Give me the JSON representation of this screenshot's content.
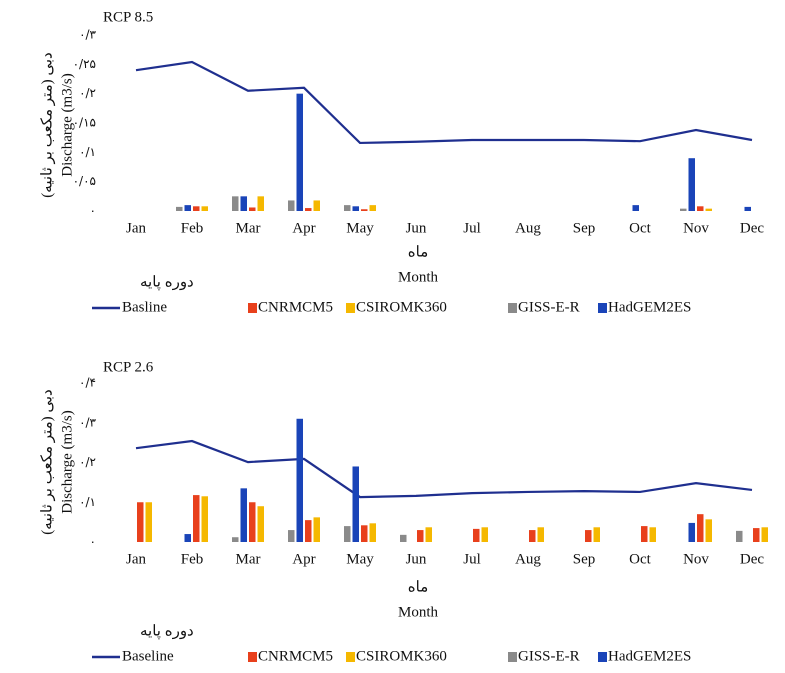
{
  "chart_data": [
    {
      "type": "bar",
      "title": "RCP 8.5",
      "y_label": [
        "دبی (متر مکعب بر ثانیه)",
        "Discharge (m3/s)"
      ],
      "x_label": [
        "ماه",
        "Month"
      ],
      "legend_title": "دوره پایه",
      "categories": [
        "Jan",
        "Feb",
        "Mar",
        "Apr",
        "May",
        "Jun",
        "Jul",
        "Aug",
        "Sep",
        "Oct",
        "Nov",
        "Dec"
      ],
      "ylim": [
        0,
        0.3
      ],
      "yticks": [
        {
          "value": 0,
          "label": "٠"
        },
        {
          "value": 0.05,
          "label": "٠/٠۵"
        },
        {
          "value": 0.1,
          "label": "٠/١"
        },
        {
          "value": 0.15,
          "label": "٠/١۵"
        },
        {
          "value": 0.2,
          "label": "٠/٢"
        },
        {
          "value": 0.25,
          "label": "٠/٢۵"
        },
        {
          "value": 0.3,
          "label": "٠/٣"
        }
      ],
      "series": [
        {
          "name": "Basline",
          "type": "line",
          "color": "#1f2f8f",
          "values": [
            0.24,
            0.254,
            0.205,
            0.21,
            0.116,
            0.118,
            0.121,
            0.121,
            0.121,
            0.119,
            0.138,
            0.121
          ]
        },
        {
          "name": "CNRMCM5",
          "color": "#e8401c",
          "values": [
            0,
            0.008,
            0.006,
            0.005,
            0.003,
            0,
            0,
            0,
            0,
            0,
            0.008,
            0
          ]
        },
        {
          "name": "CSIROMK360",
          "color": "#f5b800",
          "values": [
            0,
            0.008,
            0.025,
            0.018,
            0.01,
            0,
            0,
            0,
            0,
            0,
            0.004,
            0
          ]
        },
        {
          "name": "GISS-E-R",
          "color": "#8a8a8a",
          "values": [
            0,
            0.007,
            0.025,
            0.018,
            0.01,
            0,
            0,
            0,
            0,
            0,
            0.004,
            0
          ]
        },
        {
          "name": "HadGEM2ES",
          "color": "#1a44b8",
          "values": [
            0,
            0.01,
            0.025,
            0.2,
            0.008,
            0,
            0,
            0,
            0,
            0.01,
            0.09,
            0.007
          ]
        }
      ]
    },
    {
      "type": "bar",
      "title": "RCP 2.6",
      "y_label": [
        "دبی (متر مکعب بر ثانیه)",
        "Discharge (m3/s)"
      ],
      "x_label": [
        "ماه",
        "Month"
      ],
      "legend_title": "دوره پایه",
      "categories": [
        "Jan",
        "Feb",
        "Mar",
        "Apr",
        "May",
        "Jun",
        "Jul",
        "Aug",
        "Sep",
        "Oct",
        "Nov",
        "Dec"
      ],
      "ylim": [
        0,
        0.4
      ],
      "yticks": [
        {
          "value": 0,
          "label": "٠"
        },
        {
          "value": 0.1,
          "label": "٠/١"
        },
        {
          "value": 0.2,
          "label": "٠/٢"
        },
        {
          "value": 0.3,
          "label": "٠/٣"
        },
        {
          "value": 0.4,
          "label": "٠/۴"
        }
      ],
      "series": [
        {
          "name": "Baseline",
          "type": "line",
          "color": "#1f2f8f",
          "values": [
            0.236,
            0.254,
            0.201,
            0.209,
            0.113,
            0.116,
            0.123,
            0.126,
            0.128,
            0.126,
            0.148,
            0.131
          ]
        },
        {
          "name": "CNRMCM5",
          "color": "#e8401c",
          "values": [
            0.1,
            0.118,
            0.1,
            0.055,
            0.042,
            0.03,
            0.033,
            0.03,
            0.03,
            0.04,
            0.07,
            0.035
          ]
        },
        {
          "name": "CSIROMK360",
          "color": "#f5b800",
          "values": [
            0.1,
            0.115,
            0.09,
            0.062,
            0.047,
            0.037,
            0.037,
            0.037,
            0.037,
            0.037,
            0.057,
            0.037
          ]
        },
        {
          "name": "GISS-E-R",
          "color": "#8a8a8a",
          "values": [
            0,
            0,
            0.012,
            0.03,
            0.04,
            0.018,
            0,
            0,
            0,
            0,
            0,
            0.028
          ]
        },
        {
          "name": "HadGEM2ES",
          "color": "#1a44b8",
          "values": [
            0,
            0.02,
            0.135,
            0.31,
            0.19,
            0,
            0,
            0,
            0,
            0,
            0.048,
            0
          ]
        }
      ]
    }
  ]
}
